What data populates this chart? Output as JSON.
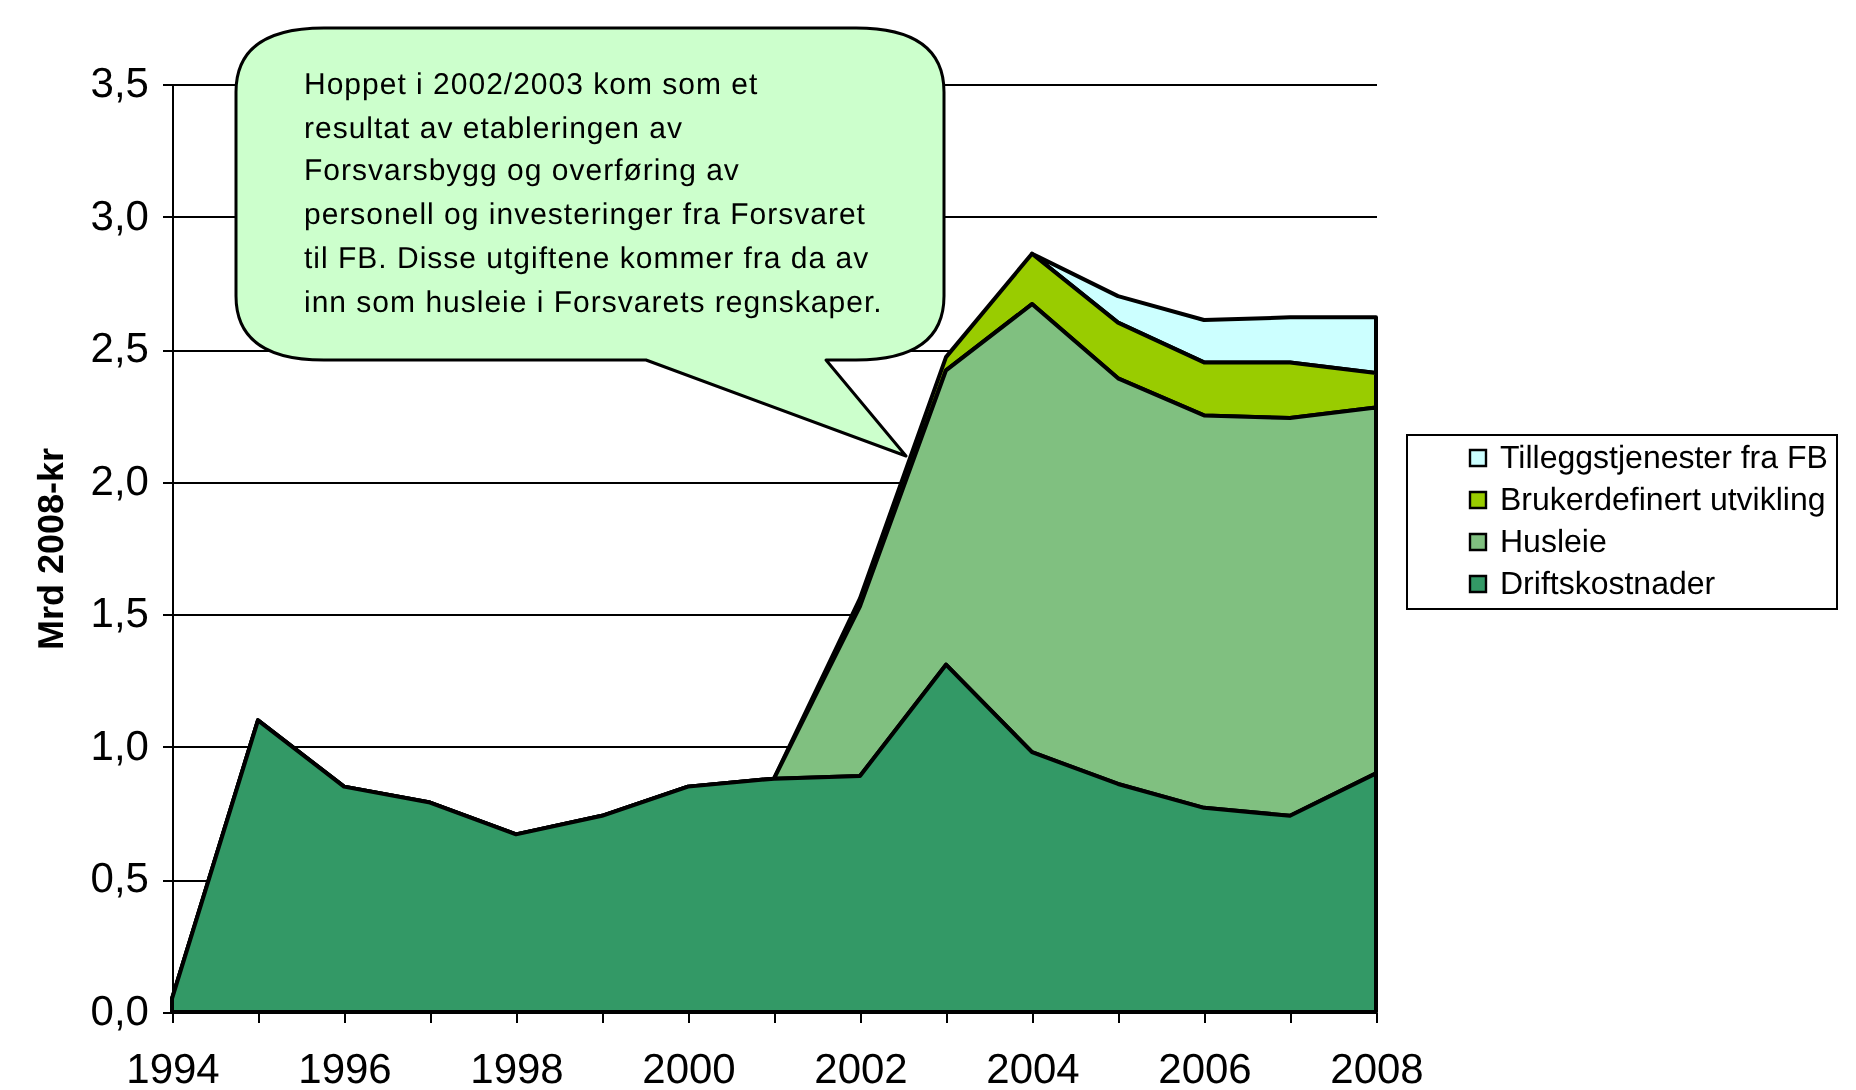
{
  "chart_data": {
    "type": "area",
    "stacked": true,
    "ylabel": "Mrd 2008-kr",
    "x": [
      1994,
      1995,
      1996,
      1997,
      1998,
      1999,
      2000,
      2001,
      2002,
      2003,
      2004,
      2005,
      2006,
      2007,
      2008
    ],
    "xlim": [
      1994,
      2008
    ],
    "xticks": [
      1994,
      {
        "value": 1995,
        "label": null
      },
      1996,
      {
        "value": 1997,
        "label": null
      },
      1998,
      {
        "value": 1999,
        "label": null
      },
      2000,
      {
        "value": 2001,
        "label": null
      },
      2002,
      {
        "value": 2003,
        "label": null
      },
      2004,
      {
        "value": 2005,
        "label": null
      },
      2006,
      {
        "value": 2007,
        "label": null
      },
      2008
    ],
    "ylim": [
      0,
      3.5
    ],
    "yticks": [
      {
        "value": 0,
        "label": "0,0"
      },
      {
        "value": 0.5,
        "label": "0,5"
      },
      {
        "value": 1,
        "label": "1,0"
      },
      {
        "value": 1.5,
        "label": "1,5"
      },
      {
        "value": 2,
        "label": "2,0"
      },
      {
        "value": 2.5,
        "label": "2,5"
      },
      {
        "value": 3,
        "label": "3,0"
      },
      {
        "value": 3.5,
        "label": "3,5"
      }
    ],
    "grid": "y",
    "legend": "right",
    "series": [
      {
        "name": "Driftskostnader",
        "color": "#339966",
        "values": [
          0.05,
          1.1,
          0.85,
          0.79,
          0.67,
          0.74,
          0.85,
          0.88,
          0.89,
          1.31,
          0.98,
          0.86,
          0.77,
          0.74,
          0.9
        ]
      },
      {
        "name": "Husleie",
        "color": "#80c080",
        "values": [
          0,
          0,
          0,
          0,
          0,
          0,
          0,
          0,
          0.64,
          1.11,
          1.69,
          1.53,
          1.48,
          1.5,
          1.38
        ]
      },
      {
        "name": "Brukerdefinert utvikling",
        "color": "#99cc00",
        "values": [
          0,
          0,
          0,
          0,
          0,
          0,
          0,
          0,
          0.03,
          0.05,
          0.19,
          0.21,
          0.2,
          0.21,
          0.13
        ]
      },
      {
        "name": "Tilleggstjenester fra FB",
        "color": "#ccffff",
        "values": [
          null,
          null,
          null,
          null,
          null,
          null,
          null,
          null,
          null,
          null,
          0,
          0.1,
          0.16,
          0.17,
          0.21
        ]
      }
    ],
    "annotations": [
      "Hoppet i 2002/2003 kom som et\nresultat av etableringen av\nForsvarsbygg og overføring av\npersonell og investeringer fra Forsvaret\ntil FB. Disse utgiftene kommer fra da av\ninn som husleie i Forsvarets regnskaper."
    ]
  }
}
